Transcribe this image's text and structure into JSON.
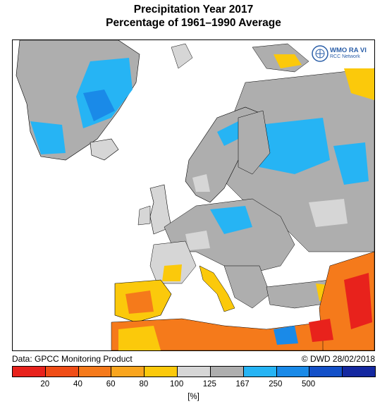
{
  "title_line1": "Precipitation Year 2017",
  "title_line2": "Percentage of 1961–1990 Average",
  "source": "Data: GPCC Monitoring Product",
  "credit": "© DWD 28/02/2018",
  "logo": {
    "line1": "WMO RA VI",
    "line2": "RCC Network"
  },
  "legend": {
    "colors": [
      "#e8221c",
      "#f04d16",
      "#f57a1b",
      "#f9a51e",
      "#fbc90b",
      "#d6d6d6",
      "#aeaeae",
      "#26b4f4",
      "#1a8ae8",
      "#1350c8",
      "#1428a0"
    ],
    "ticks": [
      "20",
      "40",
      "60",
      "80",
      "100",
      "125",
      "167",
      "250",
      "500"
    ],
    "unit": "[%]"
  },
  "map_colors": {
    "sea": "#ffffff",
    "grey": "#aeaeae",
    "light_grey": "#d6d6d6",
    "cyan": "#26b4f4",
    "blue": "#1a8ae8",
    "yellow": "#fbc90b",
    "orange": "#f57a1b",
    "red": "#e8221c"
  }
}
